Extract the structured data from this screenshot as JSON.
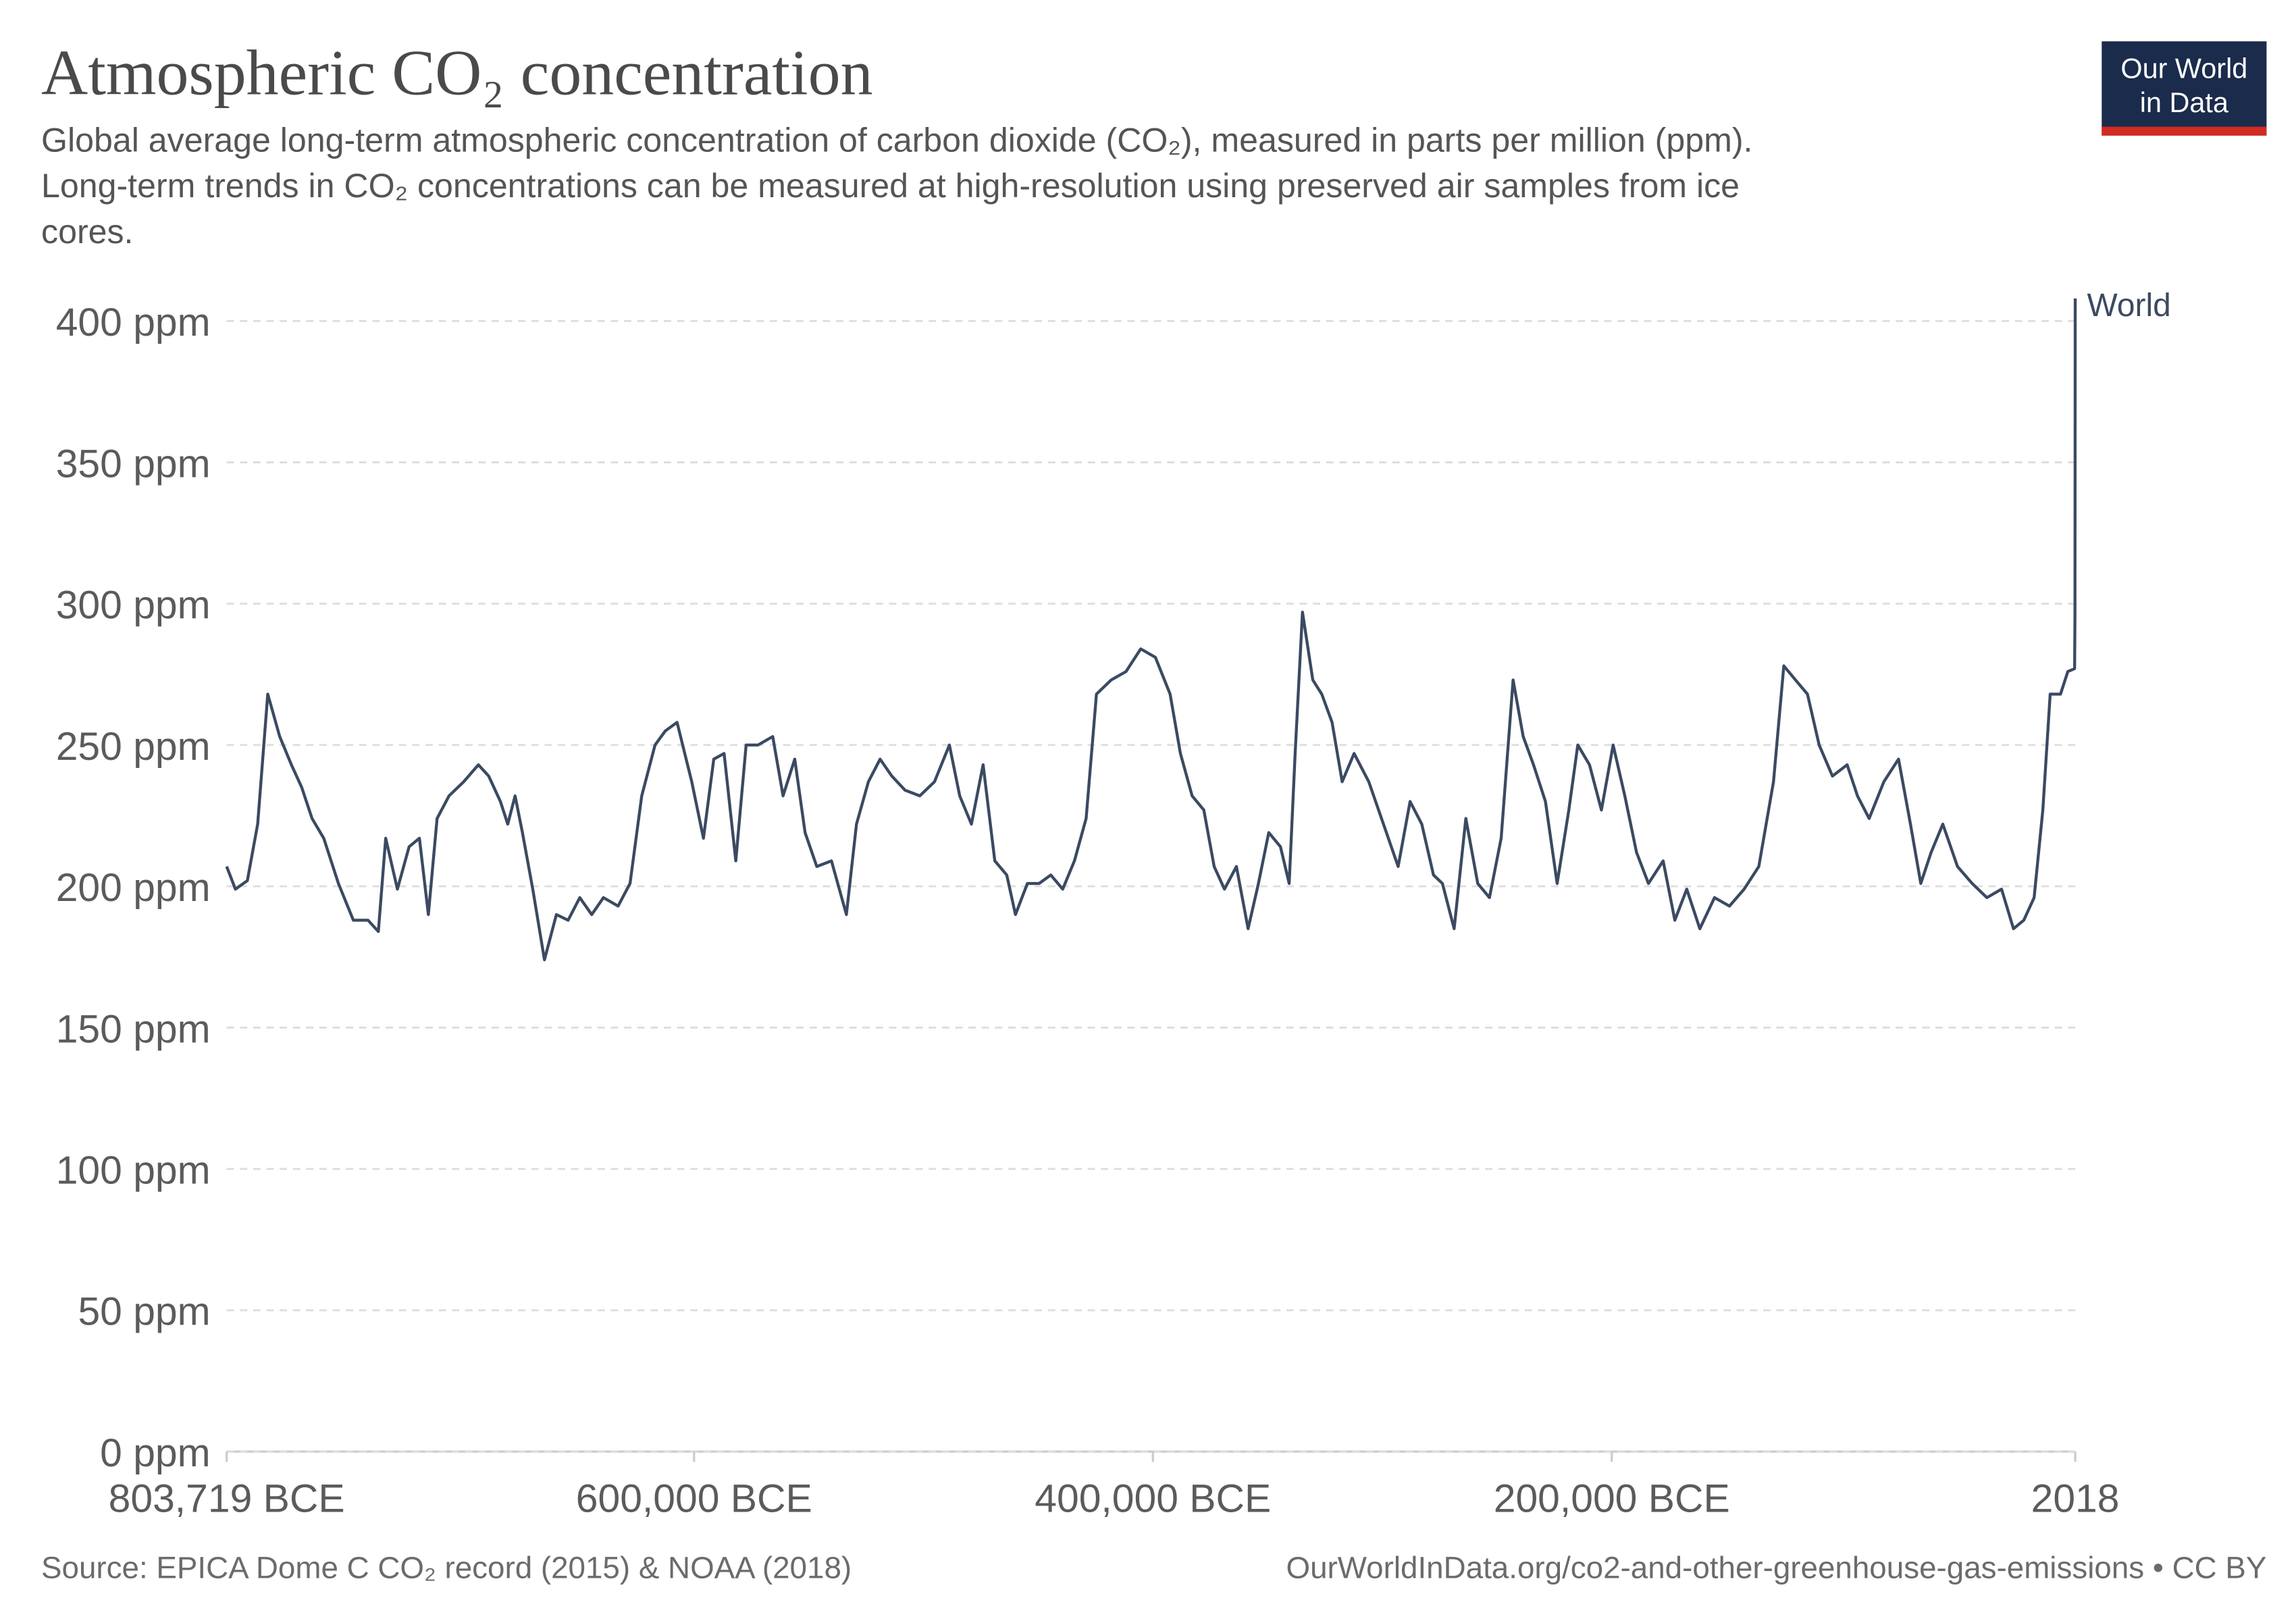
{
  "chart_data": {
    "type": "line",
    "title": "Atmospheric CO₂ concentration",
    "subtitle": [
      "Global average long-term atmospheric concentration of carbon dioxide (CO₂), measured in parts per million (ppm).",
      "Long-term trends in CO₂ concentrations can be measured at high-resolution using preserved air samples from ice",
      "cores."
    ],
    "source": "Source: EPICA Dome C CO₂ record (2015) & NOAA (2018)",
    "credit": "OurWorldInData.org/co2-and-other-greenhouse-gas-emissions • CC BY",
    "logo": [
      "Our World",
      "in Data"
    ],
    "x": [
      -803719,
      -799900,
      -794700,
      -790200,
      -785800,
      -780600,
      -775500,
      -771000,
      -766500,
      -761400,
      -755000,
      -748500,
      -742100,
      -737600,
      -734400,
      -729300,
      -724200,
      -719700,
      -715800,
      -712000,
      -706800,
      -700400,
      -694000,
      -689500,
      -684400,
      -681200,
      -678000,
      -674800,
      -670300,
      -665200,
      -660000,
      -654900,
      -649800,
      -644600,
      -639500,
      -633100,
      -627900,
      -622800,
      -617000,
      -612500,
      -607400,
      -601000,
      -595900,
      -591400,
      -586900,
      -581800,
      -577300,
      -572100,
      -565700,
      -561200,
      -556100,
      -551600,
      -546500,
      -540100,
      -533600,
      -529200,
      -524000,
      -518900,
      -513800,
      -508000,
      -501600,
      -495200,
      -488700,
      -484200,
      -479100,
      -474000,
      -468900,
      -463700,
      -459900,
      -454700,
      -449600,
      -444500,
      -439300,
      -434200,
      -429100,
      -424600,
      -418200,
      -411700,
      -405300,
      -398900,
      -392500,
      -388000,
      -382900,
      -377800,
      -373300,
      -368800,
      -363600,
      -358500,
      -354000,
      -349500,
      -344400,
      -340600,
      -338000,
      -334800,
      -330300,
      -326400,
      -321900,
      -317500,
      -312300,
      -305900,
      -299500,
      -293100,
      -287900,
      -282800,
      -277700,
      -273800,
      -268700,
      -263600,
      -258400,
      -253300,
      -248200,
      -243000,
      -238600,
      -234100,
      -228900,
      -223800,
      -218700,
      -214800,
      -209700,
      -204500,
      -199400,
      -194300,
      -189200,
      -184000,
      -177600,
      -172500,
      -167300,
      -161600,
      -155200,
      -148700,
      -142300,
      -135900,
      -129500,
      -125000,
      -119900,
      -114700,
      -109600,
      -103800,
      -97400,
      -92900,
      -87800,
      -81400,
      -75000,
      -69800,
      -65300,
      -60800,
      -55700,
      -49300,
      -42900,
      -36500,
      -30100,
      -24900,
      -20400,
      -15900,
      -12100,
      -8900,
      -4400,
      -1200,
      1750,
      1900,
      2018
    ],
    "series": [
      {
        "name": "World",
        "color": "#3b4a62",
        "values": [
          207,
          199,
          202,
          222,
          268,
          253,
          243,
          235,
          224,
          217,
          201,
          188,
          188,
          184,
          217,
          199,
          214,
          217,
          190,
          224,
          232,
          237,
          243,
          239,
          230,
          222,
          232,
          219,
          199,
          174,
          190,
          188,
          196,
          190,
          196,
          193,
          201,
          232,
          250,
          255,
          258,
          237,
          217,
          245,
          247,
          209,
          250,
          250,
          253,
          232,
          245,
          219,
          207,
          209,
          190,
          222,
          237,
          245,
          239,
          234,
          232,
          237,
          250,
          232,
          222,
          243,
          209,
          204,
          190,
          201,
          201,
          204,
          199,
          209,
          224,
          268,
          273,
          276,
          284,
          281,
          268,
          247,
          232,
          227,
          207,
          199,
          207,
          185,
          201,
          219,
          214,
          201,
          247,
          297,
          273,
          268,
          258,
          237,
          247,
          237,
          222,
          207,
          230,
          222,
          204,
          201,
          185,
          224,
          201,
          196,
          217,
          273,
          253,
          243,
          230,
          201,
          227,
          250,
          243,
          227,
          250,
          232,
          212,
          201,
          209,
          188,
          199,
          185,
          196,
          193,
          199,
          207,
          237,
          278,
          273,
          268,
          250,
          239,
          243,
          232,
          224,
          237,
          245,
          222,
          201,
          212,
          222,
          207,
          201,
          196,
          199,
          185,
          188,
          196,
          227,
          268,
          268,
          276,
          277,
          296,
          408
        ]
      }
    ],
    "xlim": [
      -803719,
      2018
    ],
    "xticks": [
      {
        "value": -803719,
        "label": "803,719 BCE"
      },
      {
        "value": -600000,
        "label": "600,000 BCE"
      },
      {
        "value": -400000,
        "label": "400,000 BCE"
      },
      {
        "value": -200000,
        "label": "200,000 BCE"
      },
      2018
    ],
    "ylim": [
      0,
      400
    ],
    "yticks": [
      {
        "value": 0,
        "label": "0 ppm"
      },
      {
        "value": 50,
        "label": "50 ppm"
      },
      {
        "value": 100,
        "label": "100 ppm"
      },
      {
        "value": 150,
        "label": "150 ppm"
      },
      {
        "value": 200,
        "label": "200 ppm"
      },
      {
        "value": 250,
        "label": "250 ppm"
      },
      {
        "value": 300,
        "label": "300 ppm"
      },
      {
        "value": 350,
        "label": "350 ppm"
      },
      {
        "value": 400,
        "label": "400 ppm"
      }
    ],
    "grid": true
  }
}
